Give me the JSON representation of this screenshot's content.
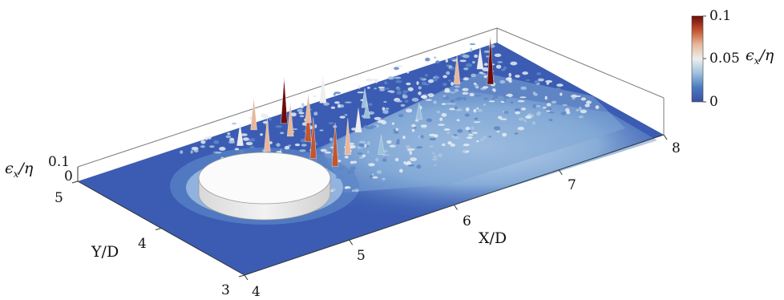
{
  "chart_data": {
    "type": "surface",
    "title": "",
    "xlabel": "X/D",
    "ylabel": "Y/D",
    "zlabel": "ϵx/η",
    "x_ticks": [
      "5",
      "6",
      "7",
      "8"
    ],
    "y_ticks": [
      "3",
      "4",
      "5"
    ],
    "x_corner_tick": "4",
    "z_ticks": [
      "0",
      "0.1"
    ],
    "xlim": [
      4,
      8
    ],
    "ylim": [
      3,
      5
    ],
    "zlim": [
      0,
      0.1
    ],
    "colorbar": {
      "label": "ϵx/η",
      "ticks": [
        "0.1",
        "0.05",
        "0"
      ],
      "range": [
        0,
        0.1
      ],
      "colormap": [
        "#3a4fa3",
        "#4c7ac0",
        "#9cc0dc",
        "#eeeeee",
        "#e8b79b",
        "#c3552f",
        "#6e0c0a"
      ]
    },
    "obstacle": {
      "shape": "cylinder",
      "center": [
        4.5,
        4.5
      ],
      "diameter": 1.0
    },
    "peaks": [
      {
        "x": 5.85,
        "y": 4.85,
        "z": 0.095
      },
      {
        "x": 5.8,
        "y": 4.5,
        "z": 0.08
      },
      {
        "x": 5.65,
        "y": 4.25,
        "z": 0.085
      },
      {
        "x": 5.7,
        "y": 4.05,
        "z": 0.09
      },
      {
        "x": 5.45,
        "y": 4.55,
        "z": 0.07
      },
      {
        "x": 5.9,
        "y": 4.15,
        "z": 0.075
      },
      {
        "x": 6.0,
        "y": 4.75,
        "z": 0.06
      },
      {
        "x": 5.6,
        "y": 4.9,
        "z": 0.065
      },
      {
        "x": 6.2,
        "y": 4.4,
        "z": 0.05
      },
      {
        "x": 6.3,
        "y": 4.95,
        "z": 0.055
      },
      {
        "x": 6.5,
        "y": 4.7,
        "z": 0.04
      },
      {
        "x": 7.3,
        "y": 4.6,
        "z": 0.06
      },
      {
        "x": 7.5,
        "y": 4.45,
        "z": 0.1
      },
      {
        "x": 7.6,
        "y": 4.7,
        "z": 0.045
      },
      {
        "x": 5.3,
        "y": 4.2,
        "z": 0.05
      },
      {
        "x": 6.1,
        "y": 4.0,
        "z": 0.04
      },
      {
        "x": 6.7,
        "y": 4.3,
        "z": 0.035
      },
      {
        "x": 5.35,
        "y": 4.75,
        "z": 0.045
      },
      {
        "x": 5.75,
        "y": 4.65,
        "z": 0.07
      },
      {
        "x": 6.4,
        "y": 4.55,
        "z": 0.035
      }
    ]
  }
}
